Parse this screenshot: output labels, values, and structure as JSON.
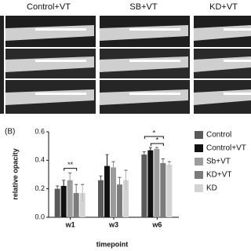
{
  "figure": {
    "image_headers": [
      "Control+VT",
      "SB+VT",
      "KD+VT"
    ],
    "panel_label": "(B)"
  },
  "chart_data": {
    "type": "bar",
    "y_label": "relative opacity",
    "x_label": "timepoint",
    "categories": [
      "w1",
      "w3",
      "w6"
    ],
    "series": [
      {
        "name": "Control",
        "color": "#5a5a5a",
        "values": [
          0.2,
          0.26,
          0.44
        ],
        "errors": [
          0.02,
          0.03,
          0.02
        ]
      },
      {
        "name": "Control+VT",
        "color": "#111111",
        "values": [
          0.22,
          0.36,
          0.47
        ],
        "errors": [
          0.04,
          0.08,
          0.02
        ]
      },
      {
        "name": "Sb+VT",
        "color": "#9c9c9c",
        "values": [
          0.26,
          0.35,
          0.48
        ],
        "errors": [
          0.05,
          0.04,
          0.01
        ]
      },
      {
        "name": "KD+VT",
        "color": "#7b7b7b",
        "values": [
          0.17,
          0.23,
          0.38
        ],
        "errors": [
          0.06,
          0.05,
          0.03
        ]
      },
      {
        "name": "KD",
        "color": "#d3d3d3",
        "values": [
          0.17,
          0.26,
          0.37
        ],
        "errors": [
          0.06,
          0.07,
          0.02
        ]
      }
    ],
    "annotations": [
      "**",
      "*",
      "*"
    ],
    "ylim": [
      0,
      0.6
    ],
    "yticks": [
      {
        "value": 0,
        "label": "0.0"
      },
      0.2,
      0.4,
      0.6
    ]
  }
}
